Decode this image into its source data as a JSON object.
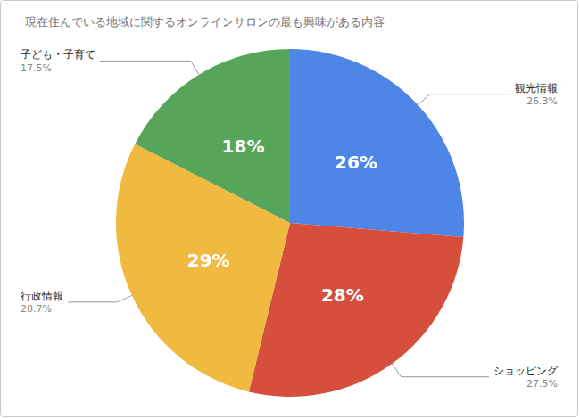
{
  "chart_data": {
    "type": "pie",
    "title": "現在住んでいる地域に関するオンラインサロンの最も興味がある内容",
    "categories": [
      "観光情報",
      "ショッピング",
      "行政情報",
      "子ども・子育て"
    ],
    "values": [
      26.3,
      27.5,
      28.7,
      17.5
    ],
    "value_labels": [
      "26.3%",
      "27.5%",
      "28.7%",
      "17.5%"
    ],
    "rounded_labels": [
      "26%",
      "28%",
      "29%",
      "18%"
    ],
    "colors": [
      "#4e86e8",
      "#d64f3c",
      "#f0b93f",
      "#57a55a"
    ],
    "data_labels": true
  }
}
